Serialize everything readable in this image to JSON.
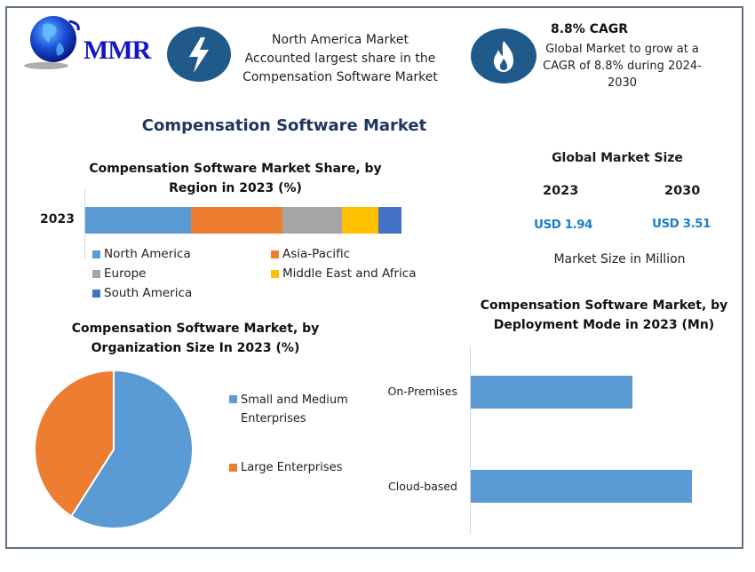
{
  "header": {
    "logo_text": "MMR",
    "info_box_1": {
      "icon": "lightning-icon",
      "lines": [
        "North America Market",
        "Accounted largest share in the",
        "Compensation Software Market"
      ]
    },
    "info_box_2": {
      "icon": "flame-icon",
      "title": "8.8% CAGR",
      "lines": [
        "Global Market to grow at a",
        "CAGR of 8.8% during 2024-",
        "2030"
      ]
    },
    "colors": {
      "icon_circle": "#1f5a8a",
      "logo": "#1515c8",
      "title": "#1e3660",
      "accent_value": "#1f7fc6"
    }
  },
  "main_title": "Compensation Software Market",
  "global_market_size": {
    "title": "Global Market Size",
    "years": [
      "2023",
      "2030"
    ],
    "values": [
      "USD 1.94",
      "USD 3.51"
    ],
    "note": "Market Size in Million"
  },
  "chart_data": [
    {
      "type": "bar",
      "orientation": "horizontal-stacked",
      "title": "Compensation Software Market Share, by Region in 2023 (%)",
      "categories": [
        "2023"
      ],
      "series": [
        {
          "name": "North America",
          "values": [
            33.4
          ],
          "color": "#5b9bd5"
        },
        {
          "name": "Asia-Pacific",
          "values": [
            28.9
          ],
          "color": "#ed7d31"
        },
        {
          "name": "Europe",
          "values": [
            18.8
          ],
          "color": "#a5a5a5"
        },
        {
          "name": "Middle East and Africa",
          "values": [
            11.5
          ],
          "color": "#ffc000"
        },
        {
          "name": "South America",
          "values": [
            7.3
          ],
          "color": "#4472c4"
        }
      ],
      "legend_position": "bottom",
      "grid": false
    },
    {
      "type": "pie",
      "title": "Compensation Software Market, by Organization Size In 2023 (%)",
      "categories": [
        "Small and Medium Enterprises",
        "Large Enterprises"
      ],
      "values": [
        59,
        41
      ],
      "colors": [
        "#5b9bd5",
        "#ed7d31"
      ],
      "legend_position": "right"
    },
    {
      "type": "bar",
      "orientation": "horizontal",
      "title": "Compensation Software Market, by Deployment Mode in 2023 (Mn)",
      "categories": [
        "On-Premises",
        "Cloud-based"
      ],
      "values": [
        0.82,
        1.12
      ],
      "color": "#5b9bd5",
      "grid": false
    }
  ],
  "labels": {
    "region_title_l1": "Compensation Software Market Share, by",
    "region_title_l2": "Region in 2023 (%)",
    "region_category": "2023",
    "org_title_l1": "Compensation Software Market, by",
    "org_title_l2": "Organization Size In 2023 (%)",
    "org_legend_1a": "Small and Medium",
    "org_legend_1b": "Enterprises",
    "org_legend_2": "Large Enterprises",
    "deploy_title_l1": "Compensation Software Market, by",
    "deploy_title_l2": "Deployment Mode in 2023 (Mn)",
    "deploy_cat_1": "On-Premises",
    "deploy_cat_2": "Cloud-based"
  }
}
